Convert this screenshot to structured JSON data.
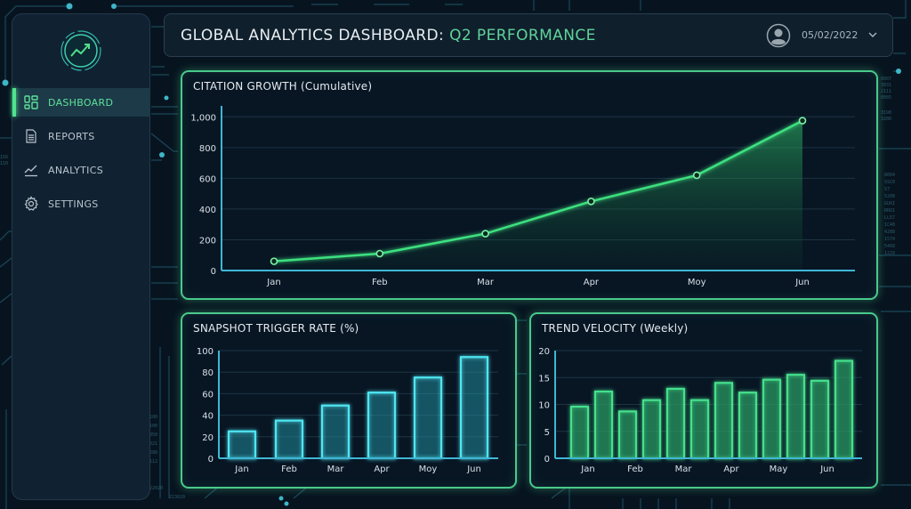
{
  "sidebar": {
    "logo": "trend-logo-icon",
    "items": [
      {
        "label": "DASHBOARD",
        "icon": "dashboard-grid-icon",
        "active": true
      },
      {
        "label": "REPORTS",
        "icon": "document-icon",
        "active": false
      },
      {
        "label": "ANALYTICS",
        "icon": "line-chart-icon",
        "active": false
      },
      {
        "label": "SETTINGS",
        "icon": "gear-icon",
        "active": false
      }
    ]
  },
  "header": {
    "title": "GLOBAL ANALYTICS DASHBOARD:",
    "title_accent": "Q2 PERFORMANCE",
    "user_icon": "user-avatar-icon",
    "date": "05/02/2022",
    "dropdown_icon": "chevron-down-icon"
  },
  "colors": {
    "background": "#07141f",
    "panel_border": "#49c98b",
    "line_green": "#3ee07f",
    "bar_cyan": "#4fe6f2",
    "bar_green": "#45e08c",
    "axis_blue": "#3fb6d6",
    "accent_text": "#5fd39a"
  },
  "chart_data": [
    {
      "id": "citation_growth",
      "type": "line",
      "title": "CITATION GROWTH (Cumulative)",
      "categories": [
        "Jan",
        "Feb",
        "Mar",
        "Apr",
        "Moy",
        "Jun"
      ],
      "values": [
        60,
        110,
        240,
        450,
        620,
        975
      ],
      "xlabel": "",
      "ylabel": "",
      "ylim": [
        0,
        1100
      ],
      "yticks": [
        "0",
        "200",
        "400",
        "600",
        "800",
        "1,000"
      ],
      "ytick_values": [
        0,
        200,
        400,
        600,
        800,
        1000
      ],
      "fill": "area under curve (gradient)",
      "grid": true,
      "legend": null
    },
    {
      "id": "snapshot_trigger_rate",
      "type": "bar",
      "title": "SNAPSHOT TRIGGER RATE (%)",
      "categories": [
        "Jan",
        "Feb",
        "Mar",
        "Apr",
        "Moy",
        "Jun"
      ],
      "values": [
        25,
        35,
        49,
        61,
        75,
        94
      ],
      "xlabel": "",
      "ylabel": "",
      "ylim": [
        0,
        100
      ],
      "yticks": [
        "0",
        "20",
        "40",
        "60",
        "80",
        "100"
      ],
      "ytick_values": [
        0,
        20,
        40,
        60,
        80,
        100
      ],
      "grid": true,
      "legend": null
    },
    {
      "id": "trend_velocity",
      "type": "bar",
      "title": "TREND VELOCITY (Weekly)",
      "categories": [
        "Jan",
        "Feb",
        "Mar",
        "Apr",
        "May",
        "Jun"
      ],
      "values": [
        9.6,
        12.4,
        8.7,
        10.8,
        12.9,
        10.8,
        14.0,
        12.2,
        14.6,
        15.5,
        14.4,
        18.1
      ],
      "bars_per_category": 2,
      "xlabel": "",
      "ylabel": "",
      "ylim": [
        0,
        20
      ],
      "yticks": [
        "0",
        "5",
        "10",
        "15",
        "20"
      ],
      "ytick_values": [
        0,
        5,
        10,
        15,
        20
      ],
      "grid": true,
      "legend": null
    }
  ]
}
